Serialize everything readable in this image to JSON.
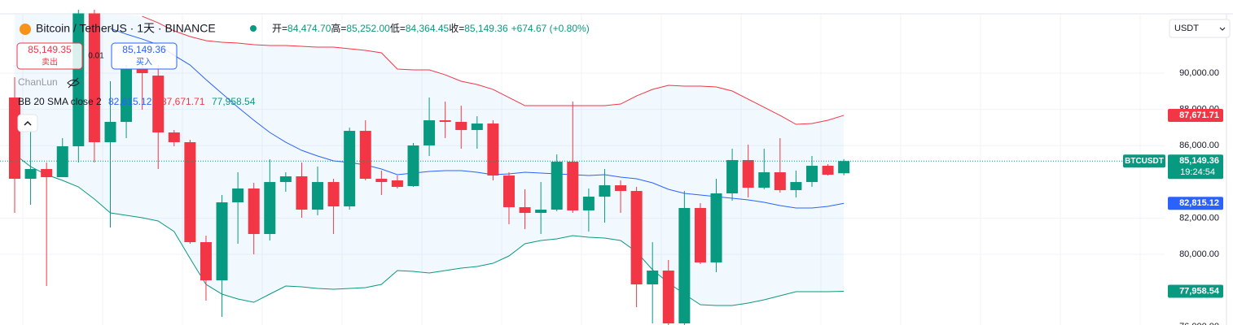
{
  "header": {
    "symbol": "Bitcoin / TetherUS · 1天 · BINANCE",
    "ohlc": [
      {
        "label": "开=",
        "value": "84,474.70"
      },
      {
        "label": "高=",
        "value": "85,252.00"
      },
      {
        "label": "低=",
        "value": "84,364.45"
      },
      {
        "label": "收=",
        "value": "85,149.36"
      }
    ],
    "change": "+674.67 (+0.80%)"
  },
  "trade": {
    "sell_price": "85,149.35",
    "sell": "卖出",
    "spread": "0.01",
    "buy_price": "85,149.36",
    "buy": "买入"
  },
  "indicators": {
    "chanlun": "ChanLun",
    "bb": "BB 20 SMA close 2",
    "bb_values": [
      "82,815.12",
      "87,671.71",
      "77,958.54"
    ]
  },
  "currency": "USDT",
  "chart_data": {
    "type": "candlestick",
    "up_color": "#089981",
    "down_color": "#f23645",
    "open": [
      88655,
      84171,
      84709,
      84260,
      85964,
      93300,
      86189,
      87310,
      90224,
      89865,
      86727,
      86189,
      80673,
      78566,
      82870,
      83633,
      81122,
      83991,
      84305,
      82467,
      83991,
      82646,
      86816,
      84171,
      84081,
      83767,
      86009,
      87399,
      87310,
      86861,
      87220,
      84350,
      82601,
      82288,
      82467,
      85112,
      82422,
      83184,
      83812,
      83498,
      78342,
      79104,
      76189,
      82557,
      79552,
      83364,
      85202,
      83677,
      84529,
      83543,
      83991,
      84888,
      84474.7
    ],
    "high": [
      89776,
      87310,
      85068,
      86413,
      93500,
      93500,
      89552,
      90448,
      90897,
      90448,
      86861,
      86323,
      81032,
      83274,
      84529,
      83946,
      85247,
      84529,
      85068,
      84843,
      84171,
      86996,
      87399,
      84619,
      84350,
      86144,
      88655,
      88431,
      88206,
      87623,
      87399,
      84529,
      83588,
      83991,
      85516,
      88431,
      83633,
      84709,
      84081,
      83722,
      80673,
      79687,
      83498,
      82826,
      84171,
      85830,
      86054,
      85830,
      86413,
      84619,
      85426,
      84978,
      85252
    ],
    "low": [
      82288,
      82736,
      78252,
      84260,
      85068,
      85068,
      81480,
      86413,
      87982,
      84709,
      85964,
      80584,
      77445,
      76548,
      80584,
      80001,
      80763,
      83453,
      82018,
      82153,
      81122,
      82467,
      84081,
      83274,
      83633,
      83722,
      85426,
      86413,
      85830,
      85830,
      84081,
      81660,
      81391,
      81122,
      82377,
      82288,
      81256,
      81749,
      82288,
      77087,
      76189,
      76100,
      76100,
      79463,
      79014,
      82960,
      83139,
      83588,
      83408,
      83139,
      83722,
      84350,
      84364.45
    ],
    "close": [
      84171,
      84709,
      84260,
      85964,
      93300,
      86189,
      87310,
      90224,
      90000,
      86727,
      86189,
      80673,
      78566,
      82870,
      83633,
      81122,
      83991,
      84305,
      82467,
      83991,
      82646,
      86816,
      84171,
      83991,
      83722,
      86009,
      87399,
      87310,
      86861,
      87220,
      84350,
      82601,
      82288,
      82467,
      85112,
      82422,
      83184,
      83812,
      83498,
      78342,
      79104,
      76189,
      82557,
      79552,
      83364,
      85202,
      83677,
      84529,
      83543,
      83991,
      84888,
      84395,
      85149.36
    ],
    "series": [
      {
        "color": "#f23645",
        "values": [
          null,
          null,
          null,
          null,
          null,
          null,
          null,
          null,
          93139,
          92780,
          92332,
          92018,
          91794,
          91704,
          91659,
          91569,
          91525,
          91525,
          91480,
          91435,
          91435,
          91345,
          91256,
          91121,
          90224,
          90179,
          90179,
          89910,
          89552,
          89372,
          89103,
          88655,
          88206,
          88206,
          88206,
          88206,
          88206,
          88206,
          88296,
          88744,
          89103,
          89327,
          89283,
          89283,
          89238,
          89014,
          88565,
          88117,
          87668,
          87175,
          87220,
          87399,
          87671.71
        ]
      },
      {
        "color": "#2962ff",
        "values": [
          null,
          null,
          null,
          null,
          null,
          null,
          92466,
          92152,
          91883,
          91569,
          90986,
          90448,
          89641,
          88879,
          88117,
          87399,
          86727,
          86189,
          85740,
          85426,
          85157,
          85068,
          84933,
          84709,
          84395,
          84485,
          84574,
          84619,
          84619,
          84529,
          84395,
          84440,
          84529,
          84485,
          84440,
          84395,
          84350,
          84395,
          84260,
          84171,
          83946,
          83588,
          83364,
          83274,
          83184,
          83094,
          83005,
          82870,
          82691,
          82557,
          82557,
          82646,
          82815.12
        ]
      },
      {
        "color": "#089981",
        "values": [
          85516,
          84843,
          84395,
          84081,
          83722,
          83050,
          82288,
          82153,
          82018,
          81839,
          81256,
          79777,
          78342,
          77804,
          77535,
          77355,
          77804,
          78252,
          78207,
          78117,
          78072,
          78117,
          78162,
          78342,
          79104,
          79059,
          78969,
          79104,
          79238,
          79327,
          79507,
          79911,
          80584,
          80763,
          80853,
          81032,
          80942,
          80897,
          80763,
          80135,
          79149,
          78431,
          77804,
          77221,
          77176,
          77176,
          77310,
          77490,
          77714,
          77938,
          77938,
          77938,
          77958.54
        ]
      }
    ],
    "ylim": [
      76100,
      93230
    ],
    "yticks": [
      {
        "value": 76000,
        "label": "76,000.00"
      },
      {
        "value": 80000,
        "label": "80,000.00"
      },
      {
        "value": 82000,
        "label": "82,000.00"
      },
      {
        "value": 86000,
        "label": "86,000.00"
      },
      {
        "value": 88000,
        "label": "88,000.00"
      },
      {
        "value": 90000,
        "label": "90,000.00"
      }
    ],
    "grid": true,
    "price_labels": {
      "upper": "87,671.71",
      "ticker": "BTCUSDT",
      "last": "85,149.36",
      "countdown": "19:24:54",
      "middle": "82,815.12",
      "lower": "77,958.54"
    }
  }
}
